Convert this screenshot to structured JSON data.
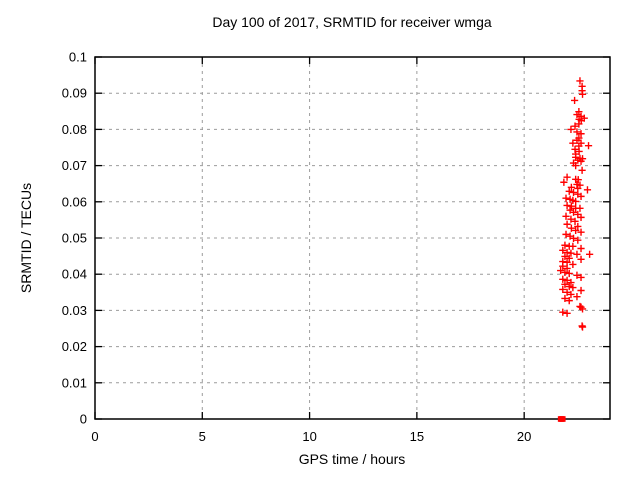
{
  "chart_data": {
    "type": "scatter",
    "title": "Day 100 of 2017, SRMTID for receiver wmga",
    "xlabel": "GPS time / hours",
    "ylabel": "SRMTID / TECUs",
    "xlim": [
      0,
      24
    ],
    "ylim": [
      0,
      0.1
    ],
    "grid": true,
    "legend": "none",
    "x_ticks": {
      "values": [
        0,
        5,
        10,
        15,
        20
      ],
      "labels": [
        "0",
        "5",
        "10",
        "15",
        "20"
      ]
    },
    "y_ticks": {
      "values": [
        0,
        0.01,
        0.02,
        0.03,
        0.04,
        0.05,
        0.06,
        0.07,
        0.08,
        0.09,
        0.1
      ],
      "labels": [
        "0",
        "0.01",
        "0.02",
        "0.03",
        "0.04",
        "0.05",
        "0.06",
        "0.07",
        "0.08",
        "0.09",
        "0.1"
      ]
    },
    "colors": {
      "points": "#ff0000",
      "grid": "#9c9c9c",
      "border": "#000000",
      "text": "#000000",
      "background": "#ffffff"
    },
    "series": [
      {
        "name": "srmtid-points",
        "marker": "plus",
        "color": "#ff0000",
        "points": [
          [
            22.6,
            0.0934
          ],
          [
            22.7,
            0.0919
          ],
          [
            22.7,
            0.0907
          ],
          [
            22.72,
            0.0897
          ],
          [
            22.35,
            0.088
          ],
          [
            22.55,
            0.0849
          ],
          [
            22.46,
            0.0841
          ],
          [
            22.65,
            0.0836
          ],
          [
            22.8,
            0.0831
          ],
          [
            22.56,
            0.0828
          ],
          [
            22.66,
            0.0824
          ],
          [
            22.55,
            0.0815
          ],
          [
            22.37,
            0.0809
          ],
          [
            22.18,
            0.08
          ],
          [
            22.46,
            0.0793
          ],
          [
            22.65,
            0.0788
          ],
          [
            22.55,
            0.0776
          ],
          [
            22.46,
            0.077
          ],
          [
            22.27,
            0.0762
          ],
          [
            22.65,
            0.0762
          ],
          [
            23.0,
            0.0755
          ],
          [
            22.55,
            0.0754
          ],
          [
            22.37,
            0.0745
          ],
          [
            22.56,
            0.0739
          ],
          [
            22.4,
            0.0732
          ],
          [
            22.4,
            0.0723
          ],
          [
            22.6,
            0.072
          ],
          [
            22.72,
            0.0719
          ],
          [
            22.5,
            0.0715
          ],
          [
            22.65,
            0.0712
          ],
          [
            22.3,
            0.0707
          ],
          [
            22.4,
            0.07
          ],
          [
            22.7,
            0.0687
          ],
          [
            22.0,
            0.0668
          ],
          [
            22.4,
            0.0662
          ],
          [
            22.52,
            0.0661
          ],
          [
            21.85,
            0.0654
          ],
          [
            22.46,
            0.0648
          ],
          [
            22.6,
            0.0646
          ],
          [
            22.2,
            0.064
          ],
          [
            22.5,
            0.0637
          ],
          [
            22.95,
            0.0633
          ],
          [
            22.1,
            0.0629
          ],
          [
            22.3,
            0.0626
          ],
          [
            22.5,
            0.0621
          ],
          [
            22.65,
            0.0615
          ],
          [
            21.95,
            0.061
          ],
          [
            22.14,
            0.0607
          ],
          [
            22.27,
            0.0604
          ],
          [
            22.4,
            0.0601
          ],
          [
            22.0,
            0.059
          ],
          [
            22.2,
            0.0588
          ],
          [
            22.4,
            0.0582
          ],
          [
            22.6,
            0.0582
          ],
          [
            22.14,
            0.0577
          ],
          [
            22.3,
            0.0571
          ],
          [
            22.5,
            0.0565
          ],
          [
            21.95,
            0.056
          ],
          [
            22.65,
            0.0557
          ],
          [
            22.18,
            0.0552
          ],
          [
            22.37,
            0.0546
          ],
          [
            22.0,
            0.0538
          ],
          [
            22.5,
            0.0532
          ],
          [
            22.2,
            0.0527
          ],
          [
            22.4,
            0.0521
          ],
          [
            22.65,
            0.0516
          ],
          [
            21.95,
            0.051
          ],
          [
            22.14,
            0.0505
          ],
          [
            22.3,
            0.0499
          ],
          [
            22.5,
            0.0494
          ],
          [
            21.9,
            0.048
          ],
          [
            22.1,
            0.0477
          ],
          [
            22.27,
            0.0477
          ],
          [
            22.65,
            0.0471
          ],
          [
            21.8,
            0.0466
          ],
          [
            22.0,
            0.046
          ],
          [
            22.18,
            0.0458
          ],
          [
            23.05,
            0.0455
          ],
          [
            22.46,
            0.0455
          ],
          [
            21.9,
            0.0449
          ],
          [
            22.1,
            0.0444
          ],
          [
            22.65,
            0.0441
          ],
          [
            21.8,
            0.0435
          ],
          [
            22.0,
            0.0433
          ],
          [
            22.27,
            0.0427
          ],
          [
            21.8,
            0.0422
          ],
          [
            22.0,
            0.0416
          ],
          [
            21.7,
            0.041
          ],
          [
            21.9,
            0.0405
          ],
          [
            22.1,
            0.0402
          ],
          [
            22.46,
            0.0397
          ],
          [
            22.65,
            0.0391
          ],
          [
            21.8,
            0.0386
          ],
          [
            22.0,
            0.0383
          ],
          [
            22.18,
            0.0377
          ],
          [
            21.9,
            0.0372
          ],
          [
            22.1,
            0.0366
          ],
          [
            22.27,
            0.0363
          ],
          [
            21.8,
            0.0358
          ],
          [
            22.65,
            0.0355
          ],
          [
            22.0,
            0.035
          ],
          [
            22.18,
            0.0344
          ],
          [
            22.46,
            0.0338
          ],
          [
            21.9,
            0.0333
          ],
          [
            22.1,
            0.0327
          ],
          [
            22.6,
            0.0311
          ],
          [
            22.65,
            0.0309
          ],
          [
            22.72,
            0.0304
          ],
          [
            21.8,
            0.0295
          ],
          [
            22.0,
            0.0292
          ],
          [
            22.7,
            0.0257
          ],
          [
            22.72,
            0.0254
          ]
        ]
      },
      {
        "name": "zero-cluster",
        "marker": "filled-square",
        "color": "#ff0000",
        "points": [
          [
            21.7,
            0
          ],
          [
            21.75,
            0
          ],
          [
            21.8,
            0
          ]
        ]
      }
    ]
  }
}
